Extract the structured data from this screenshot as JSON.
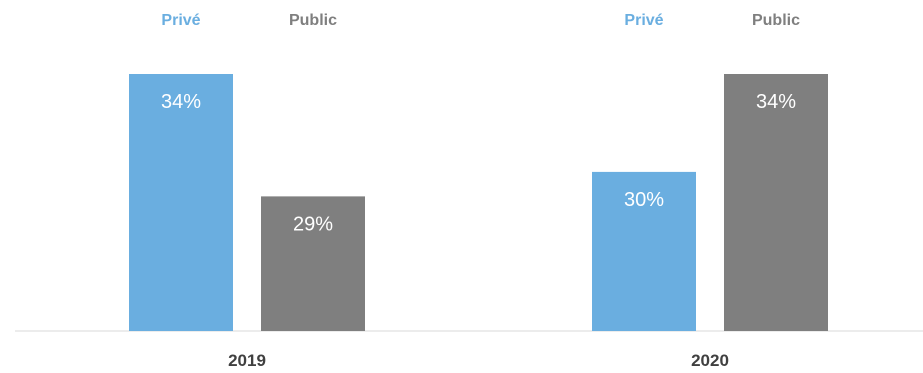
{
  "chart_data": {
    "type": "bar",
    "categories": [
      "2019",
      "2020"
    ],
    "series": [
      {
        "name": "Privé",
        "values": [
          34,
          30
        ],
        "color": "#6aaee0"
      },
      {
        "name": "Public",
        "values": [
          29,
          34
        ],
        "color": "#7f7f7f"
      }
    ],
    "value_suffix": "%",
    "ylim": [
      23.5,
      34
    ],
    "grid": false,
    "legend": "top, above each category group"
  }
}
